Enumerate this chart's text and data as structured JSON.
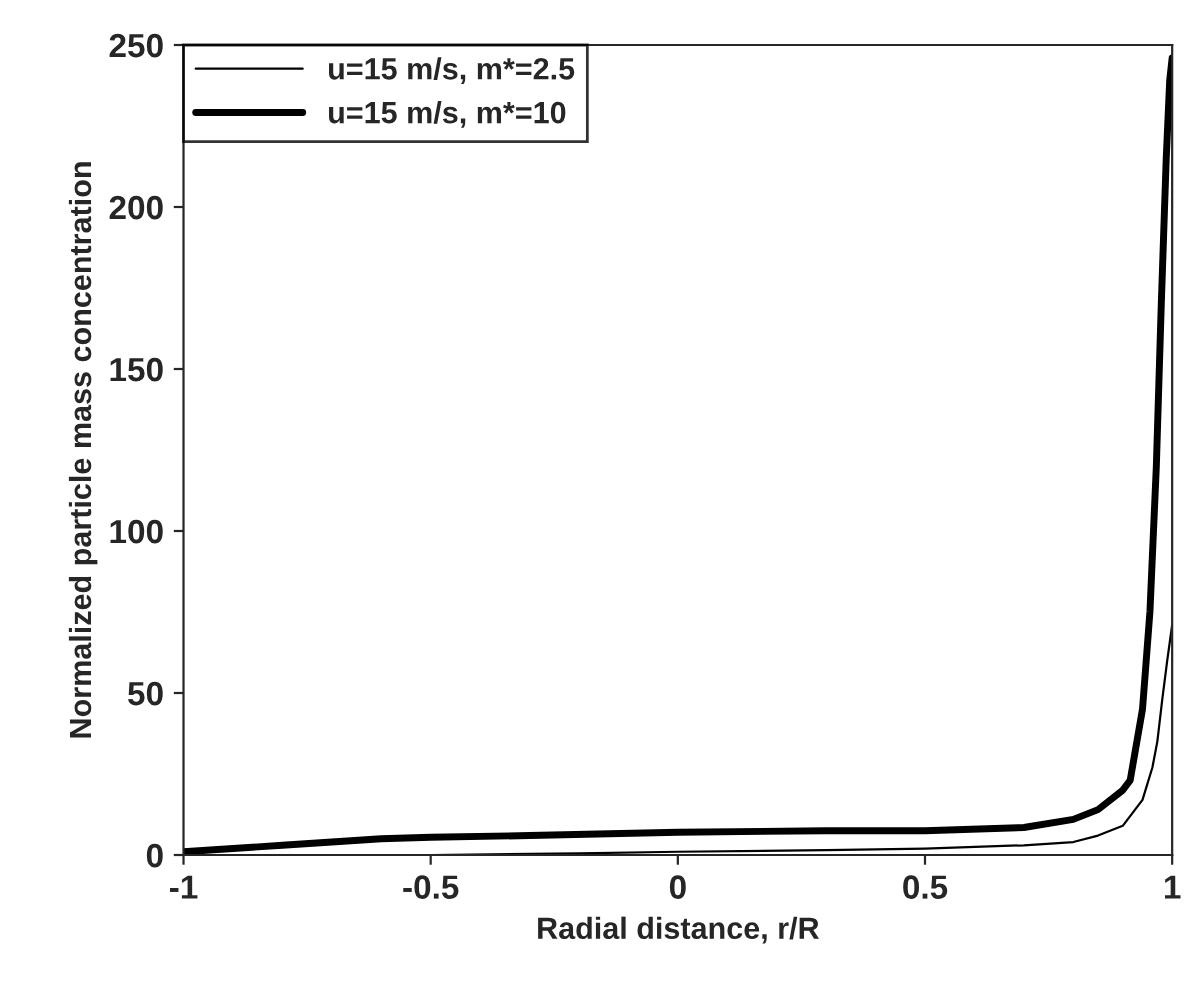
{
  "chart_data": {
    "type": "line",
    "xlabel": "Radial distance, r/R",
    "ylabel": "Normalized particle mass concentration",
    "xlim": [
      -1,
      1
    ],
    "ylim": [
      0,
      250
    ],
    "xticks": [
      -1,
      -0.5,
      0,
      0.5,
      1
    ],
    "yticks": [
      0,
      50,
      100,
      150,
      200,
      250
    ],
    "grid": false,
    "legend": "top left",
    "series": [
      {
        "name": "u=15 m/s, m*=2.5",
        "color": "#000000",
        "x": [
          -1,
          -0.8,
          -0.5,
          -0.2,
          0,
          0.3,
          0.5,
          0.7,
          0.8,
          0.85,
          0.9,
          0.94,
          0.96,
          0.97,
          0.98,
          0.99,
          1
        ],
        "values": [
          0,
          0,
          0,
          0.5,
          1,
          1.5,
          2,
          3,
          4,
          6,
          9,
          17,
          27,
          35,
          48,
          60,
          71
        ]
      },
      {
        "name": "u=15 m/s, m*=10",
        "color": "#000000",
        "x": [
          -1,
          -0.9,
          -0.8,
          -0.7,
          -0.6,
          -0.5,
          -0.3,
          0,
          0.3,
          0.5,
          0.7,
          0.8,
          0.85,
          0.9,
          0.915,
          0.94,
          0.955,
          0.968,
          0.978,
          0.988,
          0.995,
          1
        ],
        "values": [
          1,
          2,
          3,
          4,
          5,
          5.5,
          6,
          7,
          7.5,
          7.5,
          8.5,
          11,
          14,
          20,
          23,
          45,
          75,
          120,
          170,
          215,
          239,
          246
        ]
      }
    ]
  }
}
